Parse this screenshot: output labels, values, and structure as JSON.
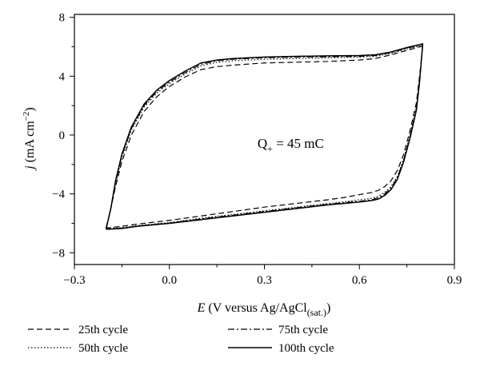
{
  "chart_data": {
    "type": "line",
    "xlabel": "E (V versus Ag/AgCl(sat.))",
    "xlabel_parts": {
      "var": "E",
      "text": " (V versus Ag/AgCl",
      "sub": "(sat.)",
      "end": ")"
    },
    "ylabel": "j (mA cm−2)",
    "ylabel_parts": {
      "var": "j",
      "text": " (mA cm",
      "sup": "−2",
      "end": ")"
    },
    "xlim": [
      -0.3,
      0.9
    ],
    "ylim": [
      -8.8,
      8.2
    ],
    "xticks": [
      -0.3,
      0.0,
      0.3,
      0.6,
      0.9
    ],
    "xtick_labels": [
      "−0.3",
      "0.0",
      "0.3",
      "0.6",
      "0.9"
    ],
    "yticks": [
      -8,
      -4,
      0,
      4,
      8
    ],
    "ytick_labels": [
      "−8",
      "−4",
      "0",
      "4",
      "8"
    ],
    "annotation": {
      "main": "Q",
      "sub": "+",
      "rest": " = 45 mC",
      "x": 0.45,
      "y": 0.0
    },
    "legend_position": "bottom",
    "grid": false,
    "series": [
      {
        "name": "25th cycle",
        "dash": "dashed",
        "x": [
          -0.2,
          -0.185,
          -0.17,
          -0.15,
          -0.12,
          -0.08,
          -0.04,
          0.0,
          0.05,
          0.1,
          0.15,
          0.2,
          0.3,
          0.4,
          0.5,
          0.6,
          0.65,
          0.7,
          0.75,
          0.8,
          0.79,
          0.78,
          0.76,
          0.74,
          0.72,
          0.7,
          0.68,
          0.66,
          0.64,
          0.6,
          0.55,
          0.5,
          0.4,
          0.3,
          0.2,
          0.1,
          0.0,
          -0.1,
          -0.15,
          -0.19,
          -0.2
        ],
        "y": [
          -6.3,
          -5.0,
          -3.5,
          -1.8,
          0.0,
          1.6,
          2.6,
          3.3,
          3.95,
          4.45,
          4.65,
          4.75,
          4.9,
          4.95,
          5.0,
          5.1,
          5.2,
          5.45,
          5.75,
          6.05,
          4.0,
          2.2,
          0.3,
          -1.3,
          -2.4,
          -3.1,
          -3.5,
          -3.75,
          -3.9,
          -4.05,
          -4.25,
          -4.4,
          -4.65,
          -4.9,
          -5.2,
          -5.5,
          -5.8,
          -6.05,
          -6.2,
          -6.3,
          -6.3
        ]
      },
      {
        "name": "50th cycle",
        "dash": "dotted",
        "x": [
          -0.2,
          -0.185,
          -0.17,
          -0.15,
          -0.12,
          -0.08,
          -0.04,
          0.0,
          0.05,
          0.1,
          0.15,
          0.2,
          0.3,
          0.4,
          0.5,
          0.6,
          0.65,
          0.7,
          0.75,
          0.8,
          0.79,
          0.78,
          0.76,
          0.74,
          0.72,
          0.7,
          0.68,
          0.66,
          0.64,
          0.6,
          0.55,
          0.5,
          0.4,
          0.3,
          0.2,
          0.1,
          0.0,
          -0.1,
          -0.15,
          -0.19,
          -0.2
        ],
        "y": [
          -6.35,
          -5.0,
          -3.3,
          -1.5,
          0.35,
          1.9,
          2.85,
          3.5,
          4.15,
          4.7,
          4.95,
          5.05,
          5.15,
          5.2,
          5.25,
          5.3,
          5.35,
          5.55,
          5.85,
          6.1,
          3.8,
          1.9,
          0.0,
          -1.6,
          -2.8,
          -3.5,
          -3.9,
          -4.15,
          -4.3,
          -4.4,
          -4.55,
          -4.65,
          -4.9,
          -5.15,
          -5.4,
          -5.65,
          -5.95,
          -6.15,
          -6.3,
          -6.35,
          -6.35
        ]
      },
      {
        "name": "75th cycle",
        "dash": "dashdot",
        "x": [
          -0.2,
          -0.185,
          -0.17,
          -0.15,
          -0.12,
          -0.08,
          -0.04,
          0.0,
          0.05,
          0.1,
          0.15,
          0.2,
          0.3,
          0.4,
          0.5,
          0.6,
          0.65,
          0.7,
          0.75,
          0.8,
          0.79,
          0.78,
          0.76,
          0.74,
          0.72,
          0.7,
          0.68,
          0.66,
          0.64,
          0.6,
          0.55,
          0.5,
          0.4,
          0.3,
          0.2,
          0.1,
          0.0,
          -0.1,
          -0.15,
          -0.19,
          -0.2
        ],
        "y": [
          -6.35,
          -5.0,
          -3.2,
          -1.4,
          0.45,
          2.0,
          2.95,
          3.6,
          4.25,
          4.8,
          5.05,
          5.15,
          5.25,
          5.3,
          5.32,
          5.35,
          5.4,
          5.6,
          5.9,
          6.15,
          3.7,
          1.8,
          -0.1,
          -1.7,
          -2.9,
          -3.6,
          -4.0,
          -4.25,
          -4.4,
          -4.5,
          -4.6,
          -4.7,
          -4.95,
          -5.2,
          -5.45,
          -5.7,
          -5.98,
          -6.18,
          -6.32,
          -6.38,
          -6.35
        ]
      },
      {
        "name": "100th cycle",
        "dash": "solid",
        "x": [
          -0.2,
          -0.185,
          -0.17,
          -0.15,
          -0.12,
          -0.08,
          -0.04,
          0.0,
          0.05,
          0.1,
          0.15,
          0.2,
          0.3,
          0.4,
          0.5,
          0.6,
          0.65,
          0.7,
          0.75,
          0.8,
          0.79,
          0.78,
          0.76,
          0.74,
          0.72,
          0.7,
          0.68,
          0.66,
          0.64,
          0.6,
          0.55,
          0.5,
          0.4,
          0.3,
          0.2,
          0.1,
          0.0,
          -0.1,
          -0.15,
          -0.19,
          -0.2
        ],
        "y": [
          -6.4,
          -5.0,
          -3.1,
          -1.3,
          0.55,
          2.1,
          3.05,
          3.7,
          4.35,
          4.9,
          5.1,
          5.2,
          5.3,
          5.35,
          5.38,
          5.4,
          5.45,
          5.65,
          5.95,
          6.2,
          3.6,
          1.7,
          -0.2,
          -1.8,
          -3.0,
          -3.7,
          -4.1,
          -4.35,
          -4.45,
          -4.55,
          -4.65,
          -4.75,
          -5.0,
          -5.25,
          -5.5,
          -5.75,
          -6.0,
          -6.2,
          -6.35,
          -6.4,
          -6.4
        ]
      }
    ]
  }
}
